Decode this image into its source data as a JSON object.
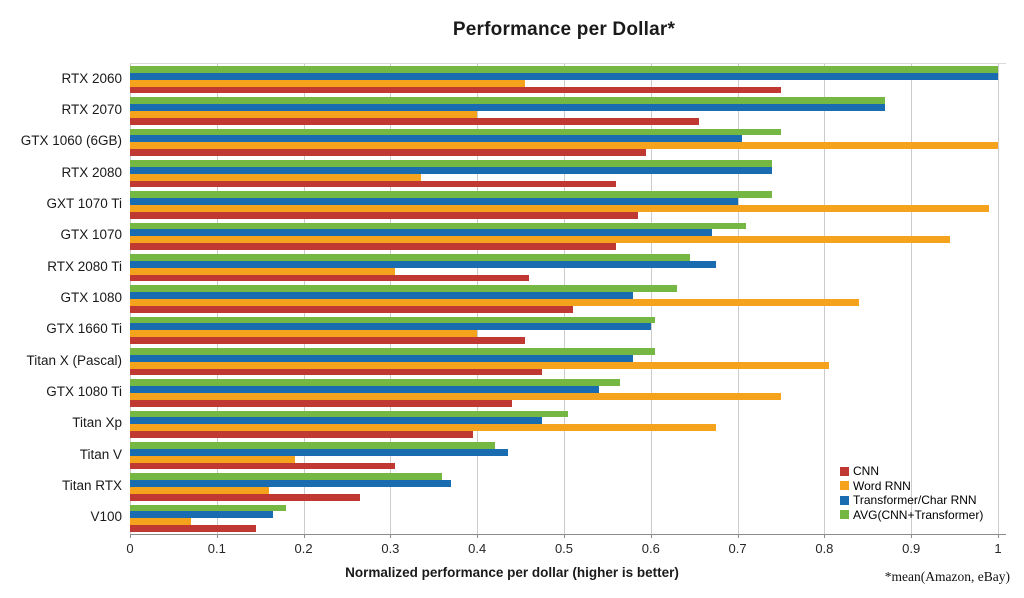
{
  "title": "Performance per Dollar*",
  "xlabel": "Normalized performance per dollar (higher is better)",
  "footnote": "*mean(Amazon, eBay)",
  "colors": {
    "cnn": "#bf3932",
    "word_rnn": "#f5a31d",
    "transformer_char_rnn": "#1a6cb1",
    "avg": "#74b843",
    "gridline": "#cccccc",
    "axis": "#8c8c8c"
  },
  "chart_data": {
    "type": "bar",
    "orientation": "horizontal",
    "title": "Performance per Dollar*",
    "xlabel": "Normalized performance per dollar (higher is better)",
    "footnote": "*mean(Amazon, eBay)",
    "xlim": [
      0,
      1
    ],
    "grid": "vertical",
    "legend_position": "bottom-right",
    "xticks": [
      0,
      0.1,
      0.2,
      0.3,
      0.4,
      0.5,
      0.6,
      0.7,
      0.8,
      0.9,
      1
    ],
    "xtick_labels": [
      "0",
      "0.1",
      "0.2",
      "0.3",
      "0.4",
      "0.5",
      "0.6",
      "0.7",
      "0.8",
      "0.9",
      "1"
    ],
    "categories": [
      "RTX 2060",
      "RTX 2070",
      "GTX 1060 (6GB)",
      "RTX 2080",
      "GXT 1070 Ti",
      "GTX 1070",
      "RTX 2080 Ti",
      "GTX 1080",
      "GTX 1660 Ti",
      "Titan X (Pascal)",
      "GTX 1080 Ti",
      "Titan Xp",
      "Titan V",
      "Titan RTX",
      "V100"
    ],
    "series": [
      {
        "name": "CNN",
        "color": "#bf3932",
        "values": [
          0.75,
          0.655,
          0.595,
          0.56,
          0.585,
          0.56,
          0.46,
          0.51,
          0.455,
          0.475,
          0.44,
          0.395,
          0.305,
          0.265,
          0.145
        ]
      },
      {
        "name": "Word RNN",
        "color": "#f5a31d",
        "values": [
          0.455,
          0.4,
          1.0,
          0.335,
          0.99,
          0.945,
          0.305,
          0.84,
          0.4,
          0.805,
          0.75,
          0.675,
          0.19,
          0.16,
          0.07
        ]
      },
      {
        "name": "Transformer/Char RNN",
        "color": "#1a6cb1",
        "values": [
          1.0,
          0.87,
          0.705,
          0.74,
          0.7,
          0.67,
          0.675,
          0.58,
          0.6,
          0.58,
          0.54,
          0.475,
          0.435,
          0.37,
          0.165
        ]
      },
      {
        "name": "AVG(CNN+Transformer)",
        "color": "#74b843",
        "values": [
          1.0,
          0.87,
          0.75,
          0.74,
          0.74,
          0.71,
          0.645,
          0.63,
          0.605,
          0.605,
          0.565,
          0.505,
          0.42,
          0.36,
          0.18
        ]
      }
    ],
    "bar_draw_order_top_to_bottom": [
      "AVG(CNN+Transformer)",
      "Transformer/Char RNN",
      "Word RNN",
      "CNN"
    ]
  }
}
